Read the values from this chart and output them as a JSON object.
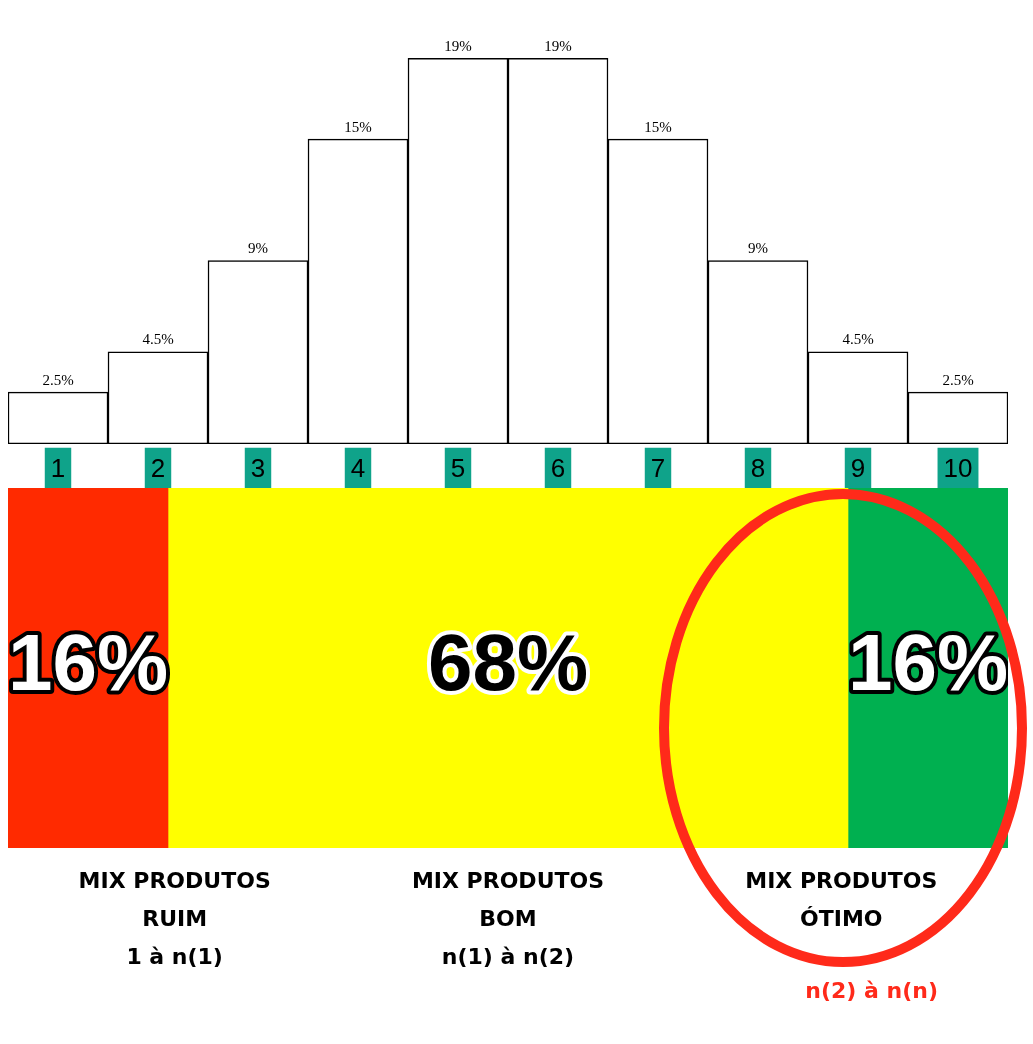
{
  "chart_data": [
    {
      "type": "bar",
      "categories": [
        "1",
        "2",
        "3",
        "4",
        "5",
        "6",
        "7",
        "8",
        "9",
        "10"
      ],
      "values": [
        2.5,
        4.5,
        9,
        15,
        19,
        19,
        15,
        9,
        4.5,
        2.5
      ],
      "value_labels": [
        "2.5%",
        "4.5%",
        "9%",
        "15%",
        "19%",
        "19%",
        "15%",
        "9%",
        "4.5%",
        "2.5%"
      ],
      "color": "#ffffff",
      "legend": false,
      "grid": false
    },
    {
      "type": "bar",
      "orientation": "horizontal",
      "stacked": true,
      "categories": [
        null
      ],
      "series": [
        {
          "color": "#ff2a00",
          "values": [
            16
          ],
          "value_labels": [
            "16%"
          ]
        },
        {
          "color": "#ffff00",
          "values": [
            68
          ],
          "value_labels": [
            "68%"
          ]
        },
        {
          "color": "#00b050",
          "values": [
            16
          ],
          "value_labels": [
            "16%"
          ]
        }
      ],
      "annotations": [
        "MIX PRODUTOS\nRUIM\n1 à n(1)",
        "MIX PRODUTOS\nBOM\nn(1) à n(2)",
        "MIX PRODUTOS\nÓTIMO",
        "n(2) à n(n)"
      ],
      "legend": false,
      "grid": false
    }
  ]
}
